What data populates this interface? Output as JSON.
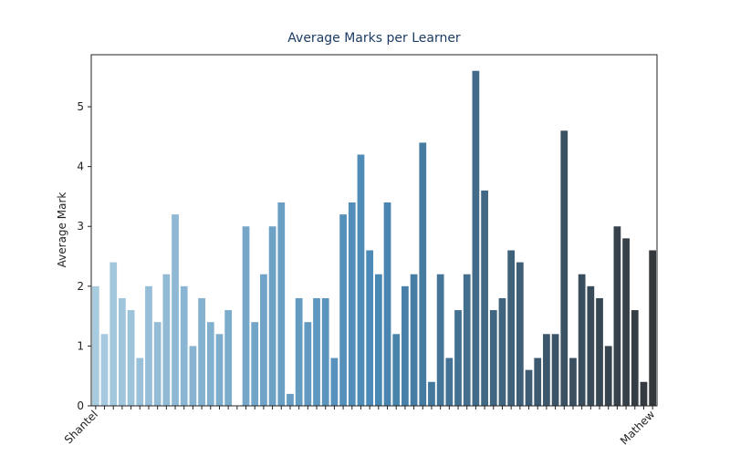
{
  "chart_data": {
    "type": "bar",
    "title": "Average Marks per Learner",
    "y_label": "Average Mark",
    "categories": [
      "Shantel",
      null,
      null,
      null,
      null,
      null,
      null,
      null,
      null,
      null,
      null,
      null,
      null,
      null,
      null,
      null,
      null,
      null,
      null,
      null,
      null,
      null,
      null,
      null,
      null,
      null,
      null,
      null,
      null,
      null,
      null,
      null,
      null,
      null,
      null,
      null,
      null,
      null,
      null,
      null,
      null,
      null,
      null,
      null,
      null,
      null,
      null,
      null,
      null,
      null,
      null,
      null,
      null,
      null,
      null,
      null,
      null,
      null,
      null,
      null,
      null,
      null,
      null,
      "Mathew"
    ],
    "values": [
      2.0,
      1.2,
      2.4,
      1.8,
      1.6,
      0.8,
      2.0,
      1.4,
      2.2,
      3.2,
      2.0,
      1.0,
      1.8,
      1.4,
      1.2,
      1.6,
      0,
      3.0,
      1.4,
      2.2,
      3.0,
      3.4,
      0.2,
      1.8,
      1.4,
      1.8,
      1.8,
      0.8,
      3.2,
      3.4,
      4.2,
      2.6,
      2.2,
      3.4,
      1.2,
      2.0,
      2.2,
      4.4,
      0.4,
      2.2,
      0.8,
      1.6,
      2.2,
      5.6,
      3.6,
      1.6,
      1.8,
      2.6,
      2.4,
      0.6,
      0.8,
      1.2,
      1.2,
      4.6,
      0.8,
      2.2,
      2.0,
      1.8,
      1.0,
      3.0,
      2.8,
      1.6,
      0.4,
      2.6
    ],
    "palette": [
      "#a9cbe0",
      "#4a89b6",
      "#34383d"
    ],
    "ylim": [
      0,
      5.87
    ],
    "yticks": [
      0,
      1,
      2,
      3,
      4,
      5
    ]
  }
}
